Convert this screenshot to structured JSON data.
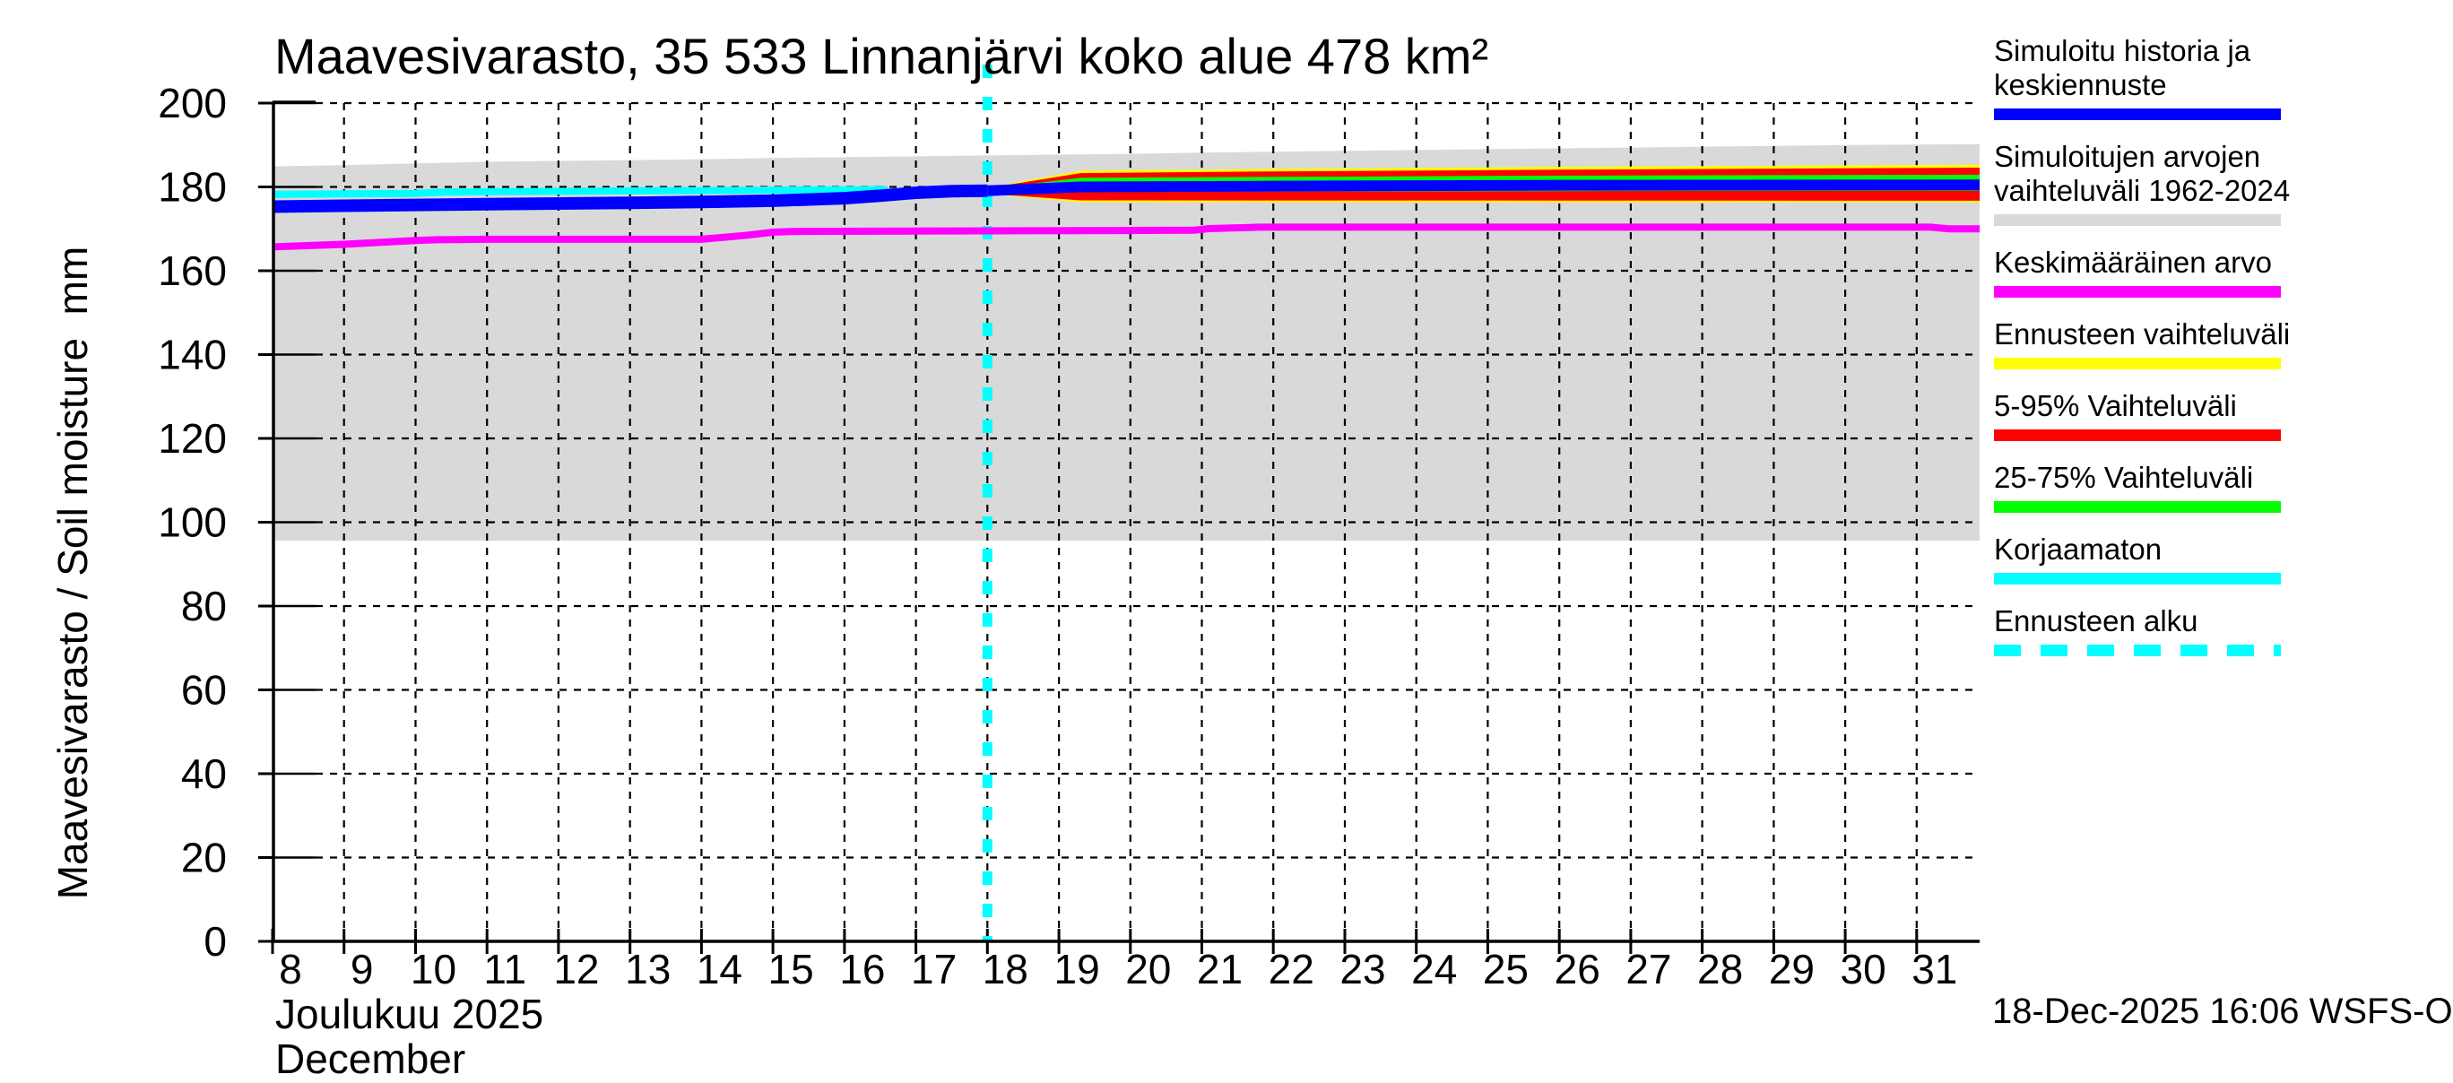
{
  "title": "Maavesivarasto, 35 533 Linnanjärvi koko alue 478 km²",
  "y_axis": {
    "label": "Maavesivarasto / Soil moisture  mm",
    "ticks": [
      0,
      20,
      40,
      60,
      80,
      100,
      120,
      140,
      160,
      180,
      200
    ]
  },
  "x_axis": {
    "ticks": [
      8,
      9,
      10,
      11,
      12,
      13,
      14,
      15,
      16,
      17,
      18,
      19,
      20,
      21,
      22,
      23,
      24,
      25,
      26,
      27,
      28,
      29,
      30,
      31
    ],
    "month_fi": "Joulukuu 2025",
    "month_en": "December"
  },
  "footer": {
    "timestamp": "18-Dec-2025 16:06 WSFS-O"
  },
  "colors": {
    "history": "#0000ff",
    "uncorrected": "#00ffff",
    "mean": "#ff00ff",
    "sim_range": "#d9d9d9",
    "forecast_range": "#ffff00",
    "p5_95": "#ff0000",
    "p25_75": "#00ff00",
    "forecast_start": "#00ffff",
    "grid": "#000000",
    "text": "#000000",
    "background": "#ffffff"
  },
  "legend": [
    {
      "lines": [
        "Simuloitu historia ja",
        "keskiennuste"
      ],
      "swatch": "history",
      "dashed": false
    },
    {
      "lines": [
        "Simuloitujen arvojen",
        "vaihteluväli 1962-2024"
      ],
      "swatch": "sim_range",
      "dashed": false
    },
    {
      "lines": [
        "Keskimääräinen arvo"
      ],
      "swatch": "mean",
      "dashed": false
    },
    {
      "lines": [
        "Ennusteen vaihteluväli"
      ],
      "swatch": "forecast_range",
      "dashed": false
    },
    {
      "lines": [
        "5-95% Vaihteluväli"
      ],
      "swatch": "p5_95",
      "dashed": false
    },
    {
      "lines": [
        "25-75% Vaihteluväli"
      ],
      "swatch": "p25_75",
      "dashed": false
    },
    {
      "lines": [
        "Korjaamaton"
      ],
      "swatch": "uncorrected",
      "dashed": false
    },
    {
      "lines": [
        "Ennusteen alku"
      ],
      "swatch": "forecast_start",
      "dashed": true
    }
  ],
  "chart_data": {
    "type": "line",
    "xlabel": "Joulukuu 2025 / December",
    "ylabel": "Maavesivarasto / Soil moisture mm",
    "xlim": [
      8,
      31.88
    ],
    "ylim": [
      0,
      202
    ],
    "grid": true,
    "forecast_start_day": 18,
    "series": [
      {
        "name": "sim_range_top_1962_2024",
        "points": [
          [
            8,
            184.9
          ],
          [
            9,
            185.2
          ],
          [
            10,
            185.6
          ],
          [
            11,
            186.0
          ],
          [
            12,
            186.2
          ],
          [
            13,
            186.4
          ],
          [
            14,
            186.6
          ],
          [
            15,
            186.9
          ],
          [
            16,
            187.1
          ],
          [
            17,
            187.3
          ],
          [
            18,
            187.5
          ],
          [
            19,
            187.7
          ],
          [
            20,
            187.9
          ],
          [
            21,
            188.2
          ],
          [
            22,
            188.4
          ],
          [
            23,
            188.6
          ],
          [
            24,
            188.8
          ],
          [
            25,
            189.0
          ],
          [
            26,
            189.2
          ],
          [
            27,
            189.4
          ],
          [
            28,
            189.6
          ],
          [
            29,
            189.8
          ],
          [
            30,
            190.0
          ],
          [
            31,
            190.1
          ],
          [
            31.88,
            190.2
          ]
        ]
      },
      {
        "name": "sim_range_bottom_1962_2024",
        "points": [
          [
            8,
            95.6
          ],
          [
            31.88,
            95.6
          ]
        ]
      },
      {
        "name": "mean_value",
        "points": [
          [
            8,
            165.7
          ],
          [
            9,
            166.3
          ],
          [
            10,
            167.2
          ],
          [
            10.3,
            167.4
          ],
          [
            11,
            167.5
          ],
          [
            14,
            167.5
          ],
          [
            14.6,
            168.4
          ],
          [
            15,
            169.2
          ],
          [
            15.3,
            169.4
          ],
          [
            20,
            169.6
          ],
          [
            20.9,
            169.7
          ],
          [
            21.1,
            170.05
          ],
          [
            21.8,
            170.4
          ],
          [
            31.2,
            170.4
          ],
          [
            31.45,
            170.0
          ],
          [
            31.88,
            170.0
          ]
        ]
      },
      {
        "name": "uncorrected",
        "points": [
          [
            8,
            178.2
          ],
          [
            9,
            178.35
          ],
          [
            10,
            178.45
          ],
          [
            10.4,
            178.75
          ],
          [
            11,
            178.85
          ],
          [
            12,
            178.95
          ],
          [
            13,
            179.05
          ],
          [
            14,
            179.15
          ],
          [
            15,
            179.25
          ],
          [
            16,
            179.3
          ],
          [
            16.6,
            179.35
          ]
        ]
      },
      {
        "name": "simulated_history_median",
        "points": [
          [
            8,
            175.3
          ],
          [
            9,
            175.5
          ],
          [
            10,
            175.7
          ],
          [
            11,
            175.9
          ],
          [
            12,
            176.05
          ],
          [
            13,
            176.2
          ],
          [
            14,
            176.4
          ],
          [
            15,
            176.7
          ],
          [
            16,
            177.3
          ],
          [
            16.5,
            177.9
          ],
          [
            17,
            178.6
          ],
          [
            17.5,
            179.0
          ],
          [
            18,
            179.1
          ]
        ]
      },
      {
        "name": "forecast_range_top",
        "points": [
          [
            18,
            179.8
          ],
          [
            19.3,
            183.9
          ],
          [
            22,
            184.3
          ],
          [
            26,
            184.8
          ],
          [
            31.88,
            185.3
          ]
        ]
      },
      {
        "name": "forecast_range_bottom",
        "points": [
          [
            18,
            178.3
          ],
          [
            19.3,
            176.35
          ],
          [
            26,
            176.3
          ],
          [
            31.88,
            176.3
          ]
        ]
      },
      {
        "name": "p5_95_top",
        "points": [
          [
            18,
            179.7
          ],
          [
            19.3,
            183.3
          ],
          [
            22,
            183.7
          ],
          [
            26,
            184.1
          ],
          [
            31.88,
            184.6
          ]
        ]
      },
      {
        "name": "p5_95_bottom",
        "points": [
          [
            18,
            178.4
          ],
          [
            19.3,
            176.8
          ],
          [
            26,
            176.75
          ],
          [
            31.88,
            176.7
          ]
        ]
      },
      {
        "name": "p25_75_top",
        "points": [
          [
            18,
            179.5
          ],
          [
            19.3,
            182.2
          ],
          [
            22,
            182.4
          ],
          [
            26,
            182.7
          ],
          [
            31.88,
            182.9
          ]
        ]
      },
      {
        "name": "p25_75_bottom",
        "points": [
          [
            18,
            178.7
          ],
          [
            19.3,
            178.8
          ],
          [
            26,
            179.0
          ],
          [
            31.88,
            179.1
          ]
        ]
      },
      {
        "name": "forecast_median",
        "points": [
          [
            18,
            179.1
          ],
          [
            19.3,
            180.0
          ],
          [
            22,
            180.2
          ],
          [
            26,
            180.4
          ],
          [
            31.88,
            180.5
          ]
        ]
      }
    ]
  }
}
